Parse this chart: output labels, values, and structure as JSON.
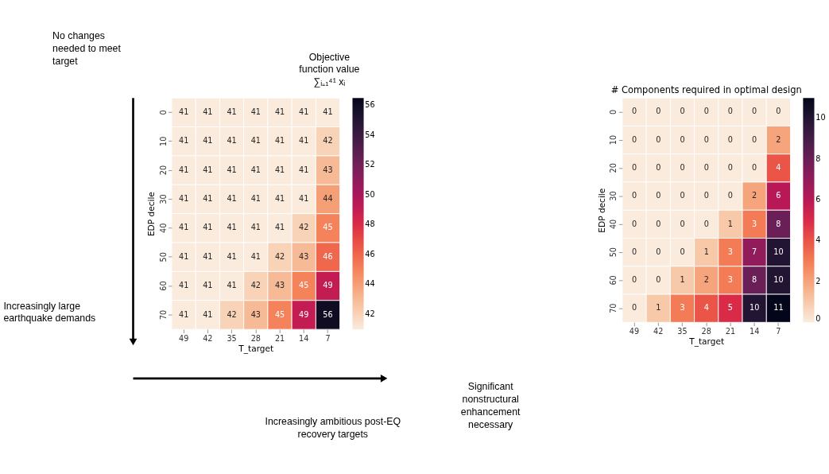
{
  "chart_data": [
    {
      "type": "heatmap",
      "xlabel": "T_target",
      "ylabel": "EDP decile",
      "categories": [
        "49",
        "42",
        "35",
        "28",
        "21",
        "14",
        "7"
      ],
      "y_categories": [
        "0",
        "10",
        "20",
        "30",
        "40",
        "50",
        "60",
        "70"
      ],
      "cells": [
        [
          41,
          41,
          41,
          41,
          41,
          41,
          41
        ],
        [
          41,
          41,
          41,
          41,
          41,
          41,
          42
        ],
        [
          41,
          41,
          41,
          41,
          41,
          41,
          43
        ],
        [
          41,
          41,
          41,
          41,
          41,
          41,
          44
        ],
        [
          41,
          41,
          41,
          41,
          41,
          42,
          45
        ],
        [
          41,
          41,
          41,
          41,
          42,
          43,
          46
        ],
        [
          41,
          41,
          41,
          42,
          43,
          45,
          49
        ],
        [
          41,
          41,
          42,
          43,
          45,
          49,
          56
        ]
      ],
      "clim": [
        41,
        56.5
      ],
      "cticks": [
        42,
        44,
        46,
        48,
        50,
        52,
        54,
        56
      ],
      "data_labels": true,
      "annotations": [
        "No changes needed to meet target",
        "Objective function value ∑ᵢ₌₁⁴¹ xᵢ",
        "Increasingly large earthquake demands",
        "Increasingly ambitious post-EQ recovery targets",
        "Significant nonstructural enhancement necessary"
      ]
    },
    {
      "type": "heatmap",
      "title": "# Components required in optimal design",
      "xlabel": "T_target",
      "ylabel": "EDP decile",
      "categories": [
        "49",
        "42",
        "35",
        "28",
        "21",
        "14",
        "7"
      ],
      "y_categories": [
        "0",
        "10",
        "20",
        "30",
        "40",
        "50",
        "60",
        "70"
      ],
      "cells": [
        [
          0,
          0,
          0,
          0,
          0,
          0,
          0
        ],
        [
          0,
          0,
          0,
          0,
          0,
          0,
          2
        ],
        [
          0,
          0,
          0,
          0,
          0,
          0,
          4
        ],
        [
          0,
          0,
          0,
          0,
          0,
          2,
          6
        ],
        [
          0,
          0,
          0,
          0,
          1,
          3,
          8
        ],
        [
          0,
          0,
          0,
          1,
          3,
          7,
          10
        ],
        [
          0,
          0,
          1,
          2,
          3,
          8,
          10
        ],
        [
          0,
          1,
          3,
          4,
          5,
          10,
          11
        ]
      ],
      "clim": [
        0,
        11
      ],
      "cticks": [
        0,
        2,
        4,
        6,
        8,
        10
      ],
      "data_labels": true
    }
  ]
}
